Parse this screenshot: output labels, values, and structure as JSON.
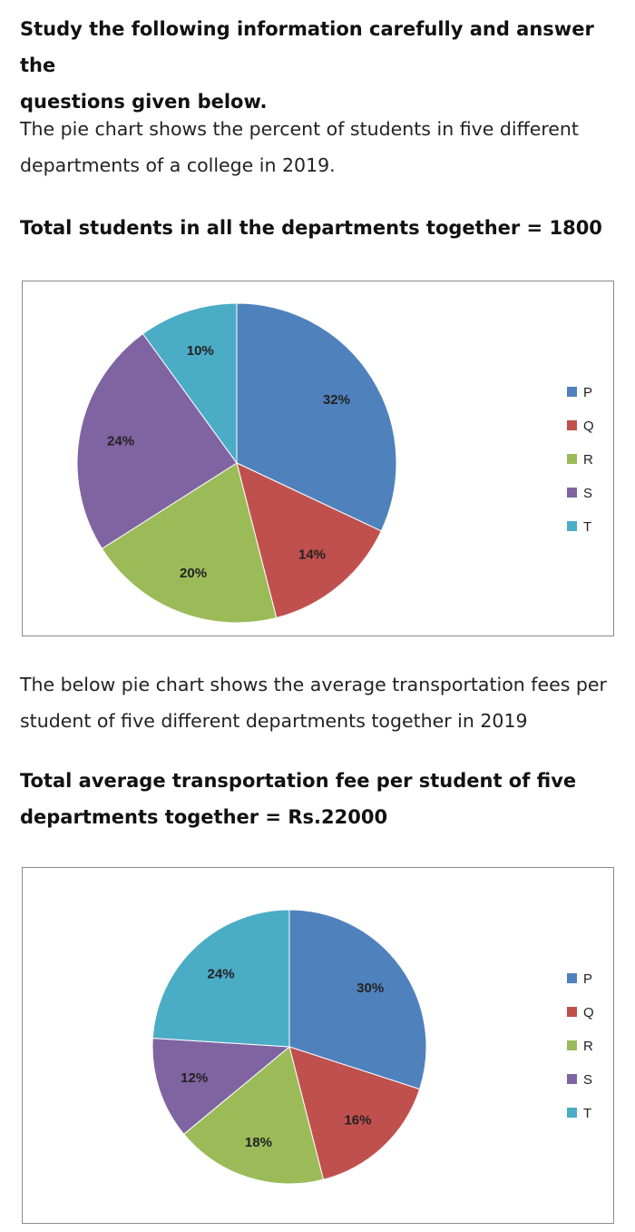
{
  "intro": {
    "heading_line1": "Study the following information carefully and answer the",
    "heading_line2": "questions given below."
  },
  "chart1_desc": {
    "line1": "The pie chart shows the percent of students in five different",
    "line2": "departments of a college in 2019."
  },
  "chart1_total": "Total students in all the departments together = 1800",
  "chart2_desc": {
    "line1": "The below pie chart shows the average transportation fees per",
    "line2": "student of five different departments together in 2019"
  },
  "chart2_total": {
    "line1": "Total average transportation fee per student of five",
    "line2": "departments together = Rs.22000"
  },
  "chart_data": [
    {
      "type": "pie",
      "title": "",
      "categories": [
        "P",
        "Q",
        "R",
        "S",
        "T"
      ],
      "values": [
        32,
        14,
        20,
        24,
        10
      ],
      "labels": [
        "32%",
        "14%",
        "20%",
        "24%",
        "10%"
      ],
      "colors": [
        "#4f81bd",
        "#c0504d",
        "#9bbb59",
        "#8064a2",
        "#4bacc6"
      ],
      "legend": "right"
    },
    {
      "type": "pie",
      "title": "",
      "categories": [
        "P",
        "Q",
        "R",
        "S",
        "T"
      ],
      "values": [
        30,
        16,
        18,
        12,
        24
      ],
      "labels": [
        "30%",
        "16%",
        "18%",
        "12%",
        "24%"
      ],
      "colors": [
        "#4f81bd",
        "#c0504d",
        "#9bbb59",
        "#8064a2",
        "#4bacc6"
      ],
      "legend": "right"
    }
  ]
}
